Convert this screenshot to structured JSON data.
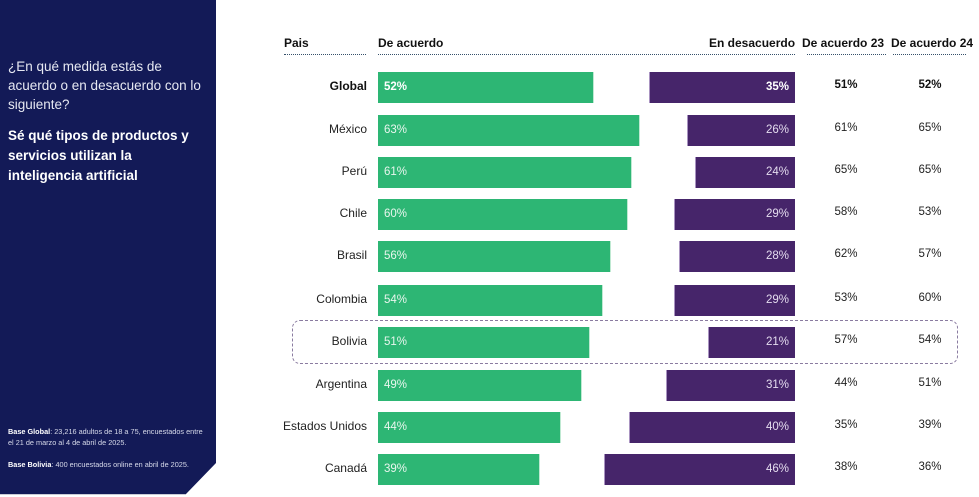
{
  "sidebar": {
    "question": "¿En qué medida estás de acuerdo o en desacuerdo con lo siguiente?",
    "statement": "Sé qué tipos de productos y servicios utilizan la inteligencia artificial",
    "notes": [
      {
        "label": "Base Global",
        "text": ": 23,216 adultos de 18 a 75, encuestados entre el 21 de marzo al 4 de abril de 2025."
      },
      {
        "label": "Base Bolivia",
        "text": ": 400 encuestados online en abril de 2025."
      }
    ]
  },
  "colors": {
    "sidebar_bg": "#131a57",
    "agree": "#2db674",
    "disagree": "#46256a",
    "highlight_border": "#8a7ba0"
  },
  "chart_data": {
    "type": "bar",
    "orientation": "horizontal-diverging",
    "headers": {
      "country": "Pais",
      "agree": "De acuerdo",
      "disagree": "En desacuerdo",
      "agree23": "De acuerdo 23",
      "agree24": "De acuerdo 24"
    },
    "categories": [
      "Global",
      "México",
      "Perú",
      "Chile",
      "Brasil",
      "Colombia",
      "Bolivia",
      "Argentina",
      "Estados Unidos",
      "Canadá"
    ],
    "series": [
      {
        "name": "De acuerdo",
        "values": [
          52,
          63,
          61,
          60,
          56,
          54,
          51,
          49,
          44,
          39
        ],
        "labels": [
          "52%",
          "63%",
          "61%",
          "60%",
          "56%",
          "54%",
          "51%",
          "49%",
          "44%",
          "39%"
        ]
      },
      {
        "name": "En desacuerdo",
        "values": [
          35,
          26,
          24,
          29,
          28,
          29,
          21,
          31,
          40,
          46
        ],
        "labels": [
          "35%",
          "26%",
          "24%",
          "29%",
          "28%",
          "29%",
          "21%",
          "31%",
          "40%",
          "46%"
        ]
      },
      {
        "name": "De acuerdo 23",
        "values": [
          51,
          61,
          65,
          58,
          62,
          53,
          57,
          44,
          35,
          38
        ],
        "labels": [
          "51%",
          "61%",
          "65%",
          "58%",
          "62%",
          "53%",
          "57%",
          "44%",
          "35%",
          "38%"
        ]
      },
      {
        "name": "De acuerdo 24",
        "values": [
          52,
          65,
          65,
          53,
          57,
          60,
          54,
          51,
          39,
          36
        ],
        "labels": [
          "52%",
          "65%",
          "65%",
          "53%",
          "57%",
          "60%",
          "54%",
          "51%",
          "39%",
          "36%"
        ]
      }
    ],
    "bold_row": "Global",
    "highlighted_row": "Bolivia",
    "unit": "%"
  }
}
